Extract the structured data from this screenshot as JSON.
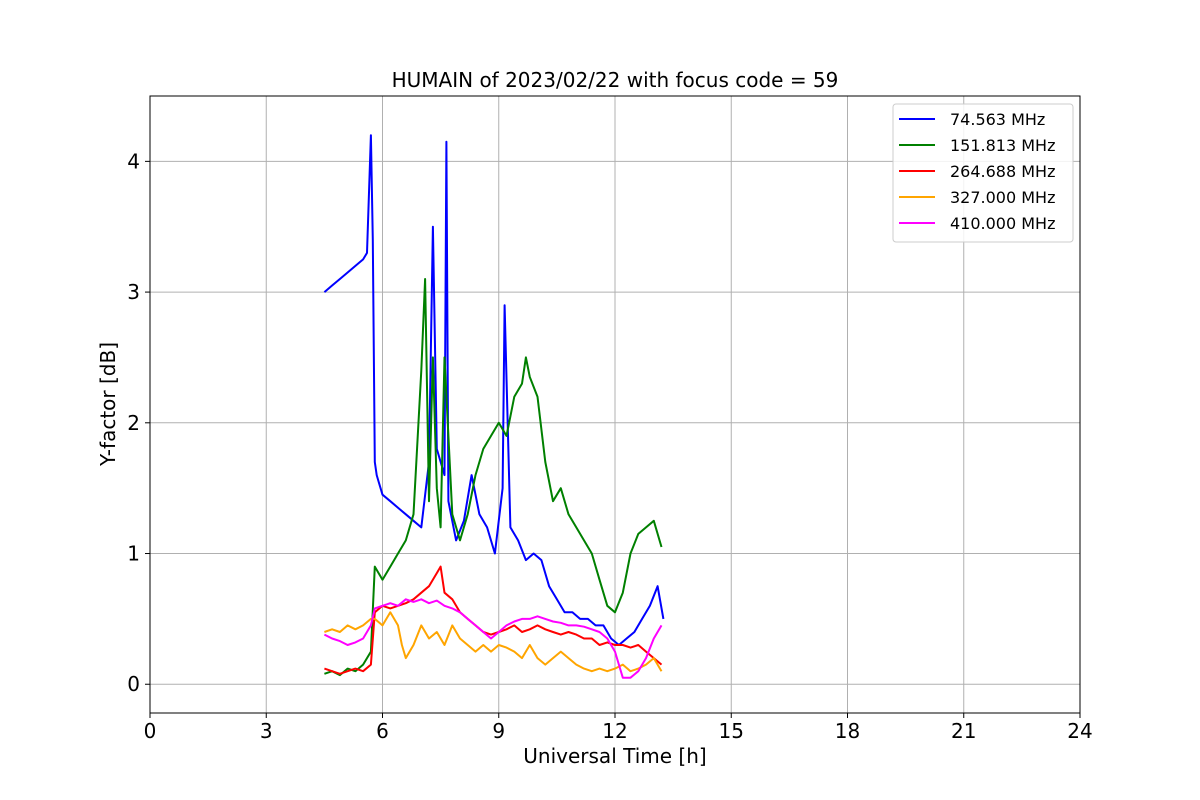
{
  "chart_data": {
    "type": "line",
    "title": "HUMAIN of 2023/02/22 with focus code = 59",
    "xlabel": "Universal Time [h]",
    "ylabel": "Y-factor [dB]",
    "xlim": [
      0,
      24
    ],
    "ylim": [
      -0.22,
      4.5
    ],
    "xticks": [
      0,
      3,
      6,
      9,
      12,
      15,
      18,
      21,
      24
    ],
    "yticks": [
      0,
      1,
      2,
      3,
      4
    ],
    "grid": true,
    "legend_position": "top-right",
    "series": [
      {
        "name": " 74.563 MHz",
        "color": "#0000ff",
        "x": [
          4.5,
          4.7,
          4.9,
          5.1,
          5.3,
          5.5,
          5.6,
          5.7,
          5.75,
          5.8,
          5.85,
          5.9,
          6.0,
          6.2,
          6.4,
          6.6,
          6.8,
          7.0,
          7.2,
          7.3,
          7.4,
          7.6,
          7.65,
          7.7,
          7.9,
          8.1,
          8.3,
          8.5,
          8.7,
          8.9,
          9.1,
          9.15,
          9.3,
          9.5,
          9.7,
          9.9,
          10.1,
          10.3,
          10.5,
          10.7,
          10.9,
          11.1,
          11.3,
          11.5,
          11.7,
          11.9,
          12.1,
          12.3,
          12.5,
          12.7,
          12.9,
          13.1,
          13.25
        ],
        "y": [
          3.0,
          3.05,
          3.1,
          3.15,
          3.2,
          3.25,
          3.3,
          4.2,
          3.4,
          1.7,
          1.6,
          1.55,
          1.45,
          1.4,
          1.35,
          1.3,
          1.25,
          1.2,
          1.7,
          3.5,
          1.8,
          1.6,
          4.15,
          1.4,
          1.1,
          1.25,
          1.6,
          1.3,
          1.2,
          1.0,
          1.5,
          2.9,
          1.2,
          1.1,
          0.95,
          1.0,
          0.95,
          0.75,
          0.65,
          0.55,
          0.55,
          0.5,
          0.5,
          0.45,
          0.45,
          0.35,
          0.3,
          0.35,
          0.4,
          0.5,
          0.6,
          0.75,
          0.5
        ]
      },
      {
        "name": "151.813 MHz",
        "color": "#008000",
        "x": [
          4.5,
          4.7,
          4.9,
          5.1,
          5.3,
          5.5,
          5.6,
          5.7,
          5.8,
          5.9,
          6.0,
          6.2,
          6.4,
          6.6,
          6.8,
          7.0,
          7.1,
          7.2,
          7.3,
          7.4,
          7.5,
          7.6,
          7.8,
          8.0,
          8.2,
          8.4,
          8.6,
          8.8,
          9.0,
          9.2,
          9.4,
          9.6,
          9.7,
          9.8,
          10.0,
          10.2,
          10.4,
          10.6,
          10.8,
          11.0,
          11.2,
          11.4,
          11.6,
          11.8,
          12.0,
          12.2,
          12.4,
          12.6,
          12.8,
          13.0,
          13.2
        ],
        "y": [
          0.08,
          0.1,
          0.07,
          0.12,
          0.1,
          0.15,
          0.2,
          0.25,
          0.9,
          0.85,
          0.8,
          0.9,
          1.0,
          1.1,
          1.3,
          2.4,
          3.1,
          1.4,
          2.5,
          1.5,
          1.2,
          2.5,
          1.3,
          1.1,
          1.3,
          1.6,
          1.8,
          1.9,
          2.0,
          1.9,
          2.2,
          2.3,
          2.5,
          2.35,
          2.2,
          1.7,
          1.4,
          1.5,
          1.3,
          1.2,
          1.1,
          1.0,
          0.8,
          0.6,
          0.55,
          0.7,
          1.0,
          1.15,
          1.2,
          1.25,
          1.05
        ]
      },
      {
        "name": "264.688 MHz",
        "color": "#ff0000",
        "x": [
          4.5,
          4.7,
          4.9,
          5.1,
          5.3,
          5.5,
          5.7,
          5.8,
          6.0,
          6.2,
          6.4,
          6.6,
          6.8,
          7.0,
          7.2,
          7.4,
          7.5,
          7.6,
          7.8,
          8.0,
          8.2,
          8.4,
          8.6,
          8.8,
          9.0,
          9.2,
          9.4,
          9.6,
          9.8,
          10.0,
          10.2,
          10.4,
          10.6,
          10.8,
          11.0,
          11.2,
          11.4,
          11.6,
          11.8,
          12.0,
          12.2,
          12.4,
          12.6,
          12.8,
          13.0,
          13.2
        ],
        "y": [
          0.12,
          0.1,
          0.08,
          0.1,
          0.12,
          0.1,
          0.15,
          0.55,
          0.6,
          0.58,
          0.6,
          0.62,
          0.65,
          0.7,
          0.75,
          0.85,
          0.9,
          0.7,
          0.65,
          0.55,
          0.5,
          0.45,
          0.4,
          0.38,
          0.4,
          0.42,
          0.45,
          0.4,
          0.42,
          0.45,
          0.42,
          0.4,
          0.38,
          0.4,
          0.38,
          0.35,
          0.35,
          0.3,
          0.32,
          0.3,
          0.3,
          0.28,
          0.3,
          0.25,
          0.2,
          0.15
        ]
      },
      {
        "name": "327.000 MHz",
        "color": "#ffa500",
        "x": [
          4.5,
          4.7,
          4.9,
          5.1,
          5.3,
          5.5,
          5.7,
          5.8,
          6.0,
          6.2,
          6.4,
          6.5,
          6.6,
          6.8,
          7.0,
          7.2,
          7.4,
          7.6,
          7.8,
          8.0,
          8.2,
          8.4,
          8.6,
          8.8,
          9.0,
          9.2,
          9.4,
          9.6,
          9.8,
          10.0,
          10.2,
          10.4,
          10.6,
          10.8,
          11.0,
          11.2,
          11.4,
          11.6,
          11.8,
          12.0,
          12.2,
          12.4,
          12.6,
          12.8,
          13.0,
          13.2
        ],
        "y": [
          0.4,
          0.42,
          0.4,
          0.45,
          0.42,
          0.45,
          0.5,
          0.5,
          0.45,
          0.55,
          0.45,
          0.3,
          0.2,
          0.3,
          0.45,
          0.35,
          0.4,
          0.3,
          0.45,
          0.35,
          0.3,
          0.25,
          0.3,
          0.25,
          0.3,
          0.28,
          0.25,
          0.2,
          0.3,
          0.2,
          0.15,
          0.2,
          0.25,
          0.2,
          0.15,
          0.12,
          0.1,
          0.12,
          0.1,
          0.12,
          0.15,
          0.1,
          0.12,
          0.15,
          0.2,
          0.1
        ]
      },
      {
        "name": "410.000 MHz",
        "color": "#ff00ff",
        "x": [
          4.5,
          4.7,
          4.9,
          5.1,
          5.3,
          5.5,
          5.7,
          5.8,
          6.0,
          6.2,
          6.4,
          6.6,
          6.8,
          7.0,
          7.2,
          7.4,
          7.6,
          7.8,
          8.0,
          8.2,
          8.4,
          8.6,
          8.8,
          9.0,
          9.2,
          9.4,
          9.6,
          9.8,
          10.0,
          10.2,
          10.4,
          10.6,
          10.8,
          11.0,
          11.2,
          11.4,
          11.6,
          11.8,
          12.0,
          12.2,
          12.4,
          12.6,
          12.8,
          13.0,
          13.2
        ],
        "y": [
          0.38,
          0.35,
          0.33,
          0.3,
          0.32,
          0.35,
          0.45,
          0.58,
          0.6,
          0.62,
          0.6,
          0.65,
          0.63,
          0.65,
          0.62,
          0.64,
          0.6,
          0.58,
          0.55,
          0.5,
          0.45,
          0.4,
          0.35,
          0.4,
          0.45,
          0.48,
          0.5,
          0.5,
          0.52,
          0.5,
          0.48,
          0.47,
          0.45,
          0.45,
          0.44,
          0.42,
          0.4,
          0.35,
          0.25,
          0.05,
          0.05,
          0.1,
          0.2,
          0.35,
          0.45
        ]
      }
    ]
  }
}
